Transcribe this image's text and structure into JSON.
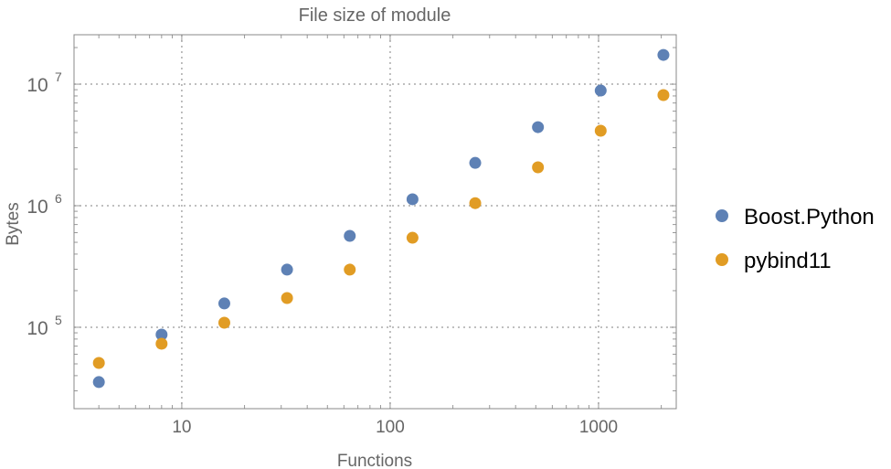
{
  "chart_data": {
    "type": "scatter",
    "title": "File size of module",
    "xlabel": "Functions",
    "ylabel": "Bytes",
    "xscale": "log",
    "yscale": "log",
    "xlim": [
      3.04,
      2360
    ],
    "ylim": [
      21400,
      25500000
    ],
    "grid": true,
    "legend_position": "right",
    "x_ticks": [
      {
        "value": 10,
        "label": "10"
      },
      {
        "value": 100,
        "label": "100"
      },
      {
        "value": 1000,
        "label": "1000"
      }
    ],
    "y_ticks": [
      {
        "value": 100000,
        "base": "10",
        "exp": "5"
      },
      {
        "value": 1000000,
        "base": "10",
        "exp": "6"
      },
      {
        "value": 10000000,
        "base": "10",
        "exp": "7"
      }
    ],
    "x": [
      4,
      8,
      16,
      32,
      64,
      128,
      256,
      512,
      1024,
      2048
    ],
    "series": [
      {
        "name": "Boost.Python",
        "color": "#5e81b5",
        "values": [
          35400,
          87000,
          157000,
          298000,
          565000,
          1130000,
          2250000,
          4430000,
          8860000,
          17400000
        ]
      },
      {
        "name": "pybind11",
        "color": "#e19c24",
        "values": [
          50900,
          73200,
          109000,
          174000,
          298000,
          545000,
          1050000,
          2070000,
          4140000,
          8130000
        ]
      }
    ]
  }
}
